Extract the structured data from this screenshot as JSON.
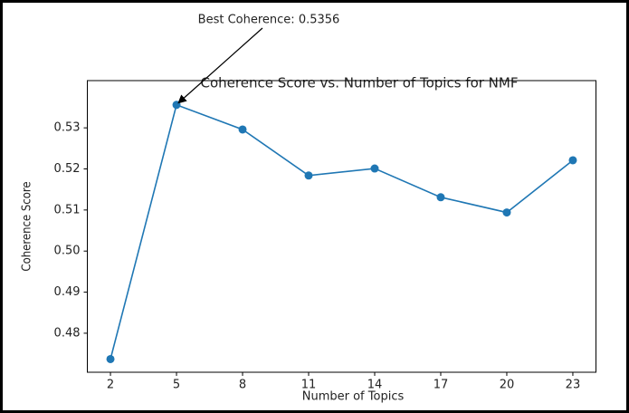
{
  "chart_data": {
    "type": "line",
    "title": "Coherence Score vs. Number of Topics for NMF",
    "annotation": "Best Coherence: 0.5356",
    "x_label": "Number of Topics",
    "y_label": "Coherence Score",
    "x": [
      2,
      5,
      8,
      11,
      14,
      17,
      20,
      23
    ],
    "series": [
      {
        "name": "Coherence",
        "color": "#1f77b4",
        "values": [
          0.4737,
          0.5356,
          0.5296,
          0.5184,
          0.5201,
          0.5131,
          0.5094,
          0.5221
        ]
      }
    ],
    "xlim": [
      0.95,
      24.05
    ],
    "xticks": [
      2,
      5,
      8,
      11,
      14,
      17,
      20,
      23
    ],
    "ylim": [
      0.4705,
      0.5415
    ],
    "yticks": [
      0.48,
      0.49,
      {
        "value": 0.5,
        "label": "0.50"
      },
      0.51,
      0.52,
      0.53
    ],
    "annotated_point": 1,
    "grid": false
  }
}
